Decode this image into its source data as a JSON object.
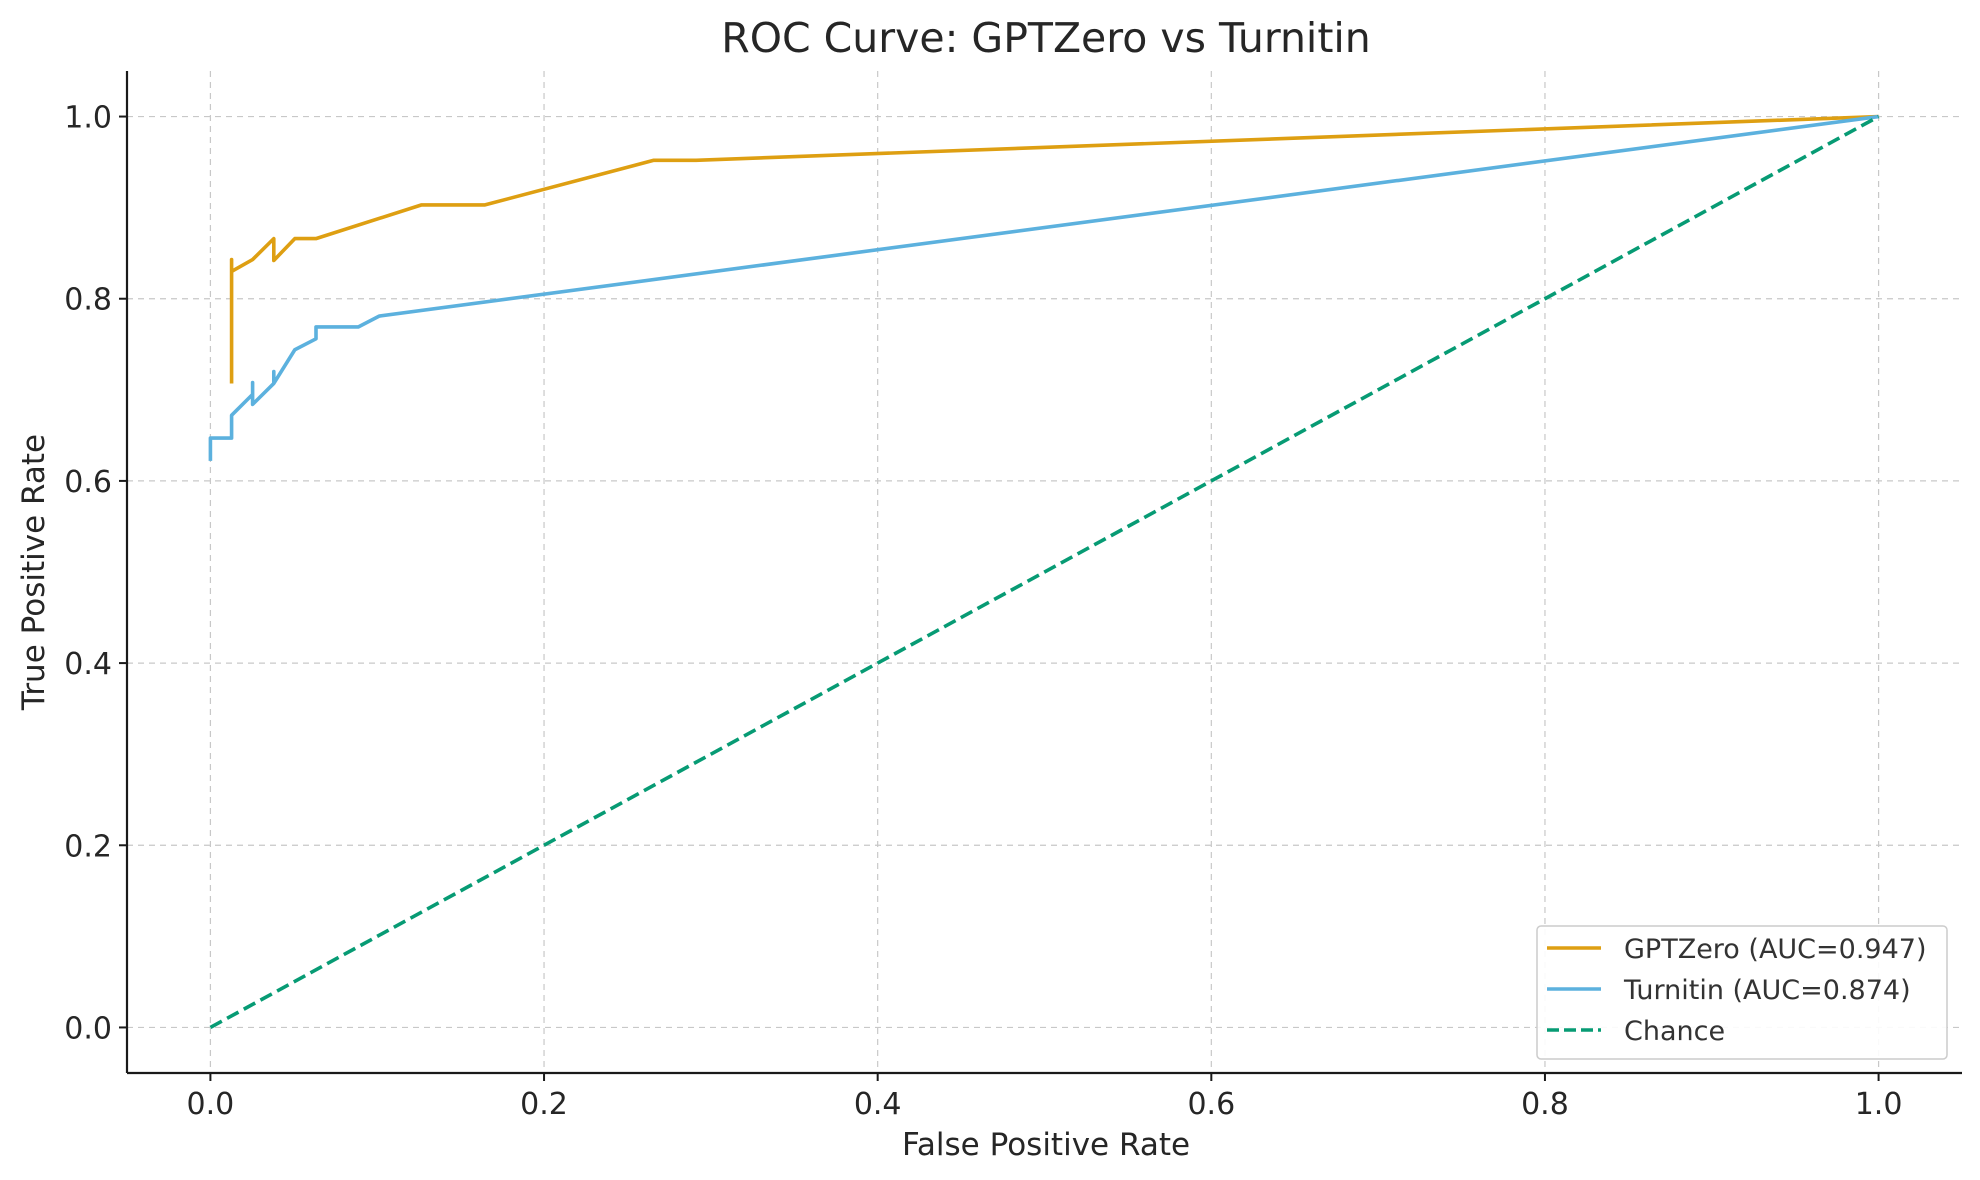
{
  "chart_data": {
    "type": "line",
    "title": "ROC Curve: GPTZero vs Turnitin",
    "xlabel": "False Positive Rate",
    "ylabel": "True Positive Rate",
    "xlim": [
      -0.05,
      1.05
    ],
    "ylim": [
      -0.05,
      1.05
    ],
    "xticks": [
      0.0,
      0.2,
      0.4,
      0.6,
      0.8,
      1.0
    ],
    "xtick_labels": [
      "0.0",
      "0.2",
      "0.4",
      "0.6",
      "0.8",
      "1.0"
    ],
    "yticks": [
      0.0,
      0.2,
      0.4,
      0.6,
      0.8,
      1.0
    ],
    "ytick_labels": [
      "0.0",
      "0.2",
      "0.4",
      "0.6",
      "0.8",
      "1.0"
    ],
    "grid": true,
    "legend_position": "bottom-right",
    "series": [
      {
        "name": "GPTZero (AUC=0.947)",
        "color": "#DE9F12",
        "line_style": "solid",
        "x": [
          0.0127,
          0.0127,
          0.0127,
          0.0127,
          0.0253,
          0.038,
          0.038,
          0.0506,
          0.0633,
          0.0633,
          0.1266,
          0.1646,
          0.2658,
          0.2911,
          1.0
        ],
        "y": [
          0.707,
          0.843,
          0.83,
          0.83,
          0.843,
          0.866,
          0.842,
          0.866,
          0.866,
          0.866,
          0.903,
          0.903,
          0.952,
          0.952,
          1.0
        ]
      },
      {
        "name": "Turnitin (AUC=0.874)",
        "color": "#5CB1DE",
        "line_style": "solid",
        "x": [
          0.0,
          0.0,
          0.0127,
          0.0127,
          0.0253,
          0.0253,
          0.0253,
          0.038,
          0.038,
          0.038,
          0.0506,
          0.0633,
          0.0633,
          0.0759,
          0.0886,
          0.1013,
          1.0
        ],
        "y": [
          0.622,
          0.647,
          0.647,
          0.672,
          0.695,
          0.708,
          0.684,
          0.707,
          0.72,
          0.707,
          0.744,
          0.756,
          0.769,
          0.769,
          0.769,
          0.781,
          1.0
        ]
      },
      {
        "name": "Chance",
        "color": "#079B74",
        "line_style": "dashed",
        "x": [
          0.0,
          1.0
        ],
        "y": [
          0.0,
          1.0
        ]
      }
    ]
  }
}
